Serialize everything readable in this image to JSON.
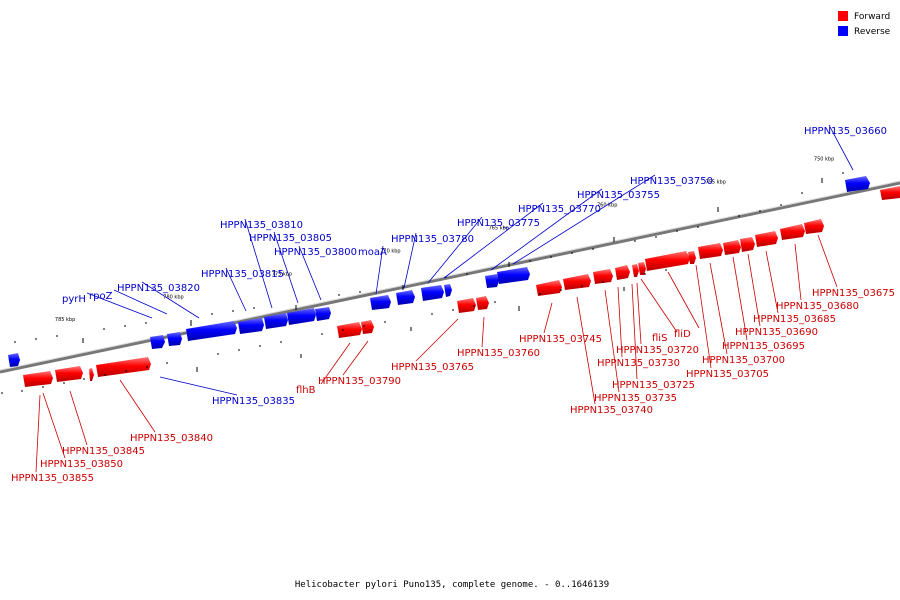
{
  "legend": {
    "items": [
      {
        "label": "Forward",
        "color": "#ff0000"
      },
      {
        "label": "Reverse",
        "color": "#0000ff"
      }
    ]
  },
  "caption": "Helicobacter pylori Puno135, complete genome. - 0..1646139",
  "axis": {
    "kbp_start": 788,
    "kbp_end": 746.5,
    "tick_labels": [
      {
        "kbp": 785,
        "label": "785 kbp"
      },
      {
        "kbp": 780,
        "label": "780 kbp"
      },
      {
        "kbp": 775,
        "label": "775 kbp"
      },
      {
        "kbp": 770,
        "label": "770 kbp"
      },
      {
        "kbp": 765,
        "label": "765 kbp"
      },
      {
        "kbp": 760,
        "label": "760 kbp"
      },
      {
        "kbp": 755,
        "label": "755 kbp"
      },
      {
        "kbp": 750,
        "label": "750 kbp"
      }
    ]
  },
  "genes": {
    "forward": [
      {
        "label": "HPPN135_03855",
        "kbp": 787.0
      },
      {
        "label": "HPPN135_03850",
        "kbp": 786.5
      },
      {
        "label": "HPPN135_03845",
        "kbp": 785.8
      },
      {
        "label": "HPPN135_03840",
        "kbp": 785.0
      },
      {
        "label": "flhB",
        "kbp": 774.8
      },
      {
        "label": "HPPN135_03790",
        "kbp": 773.8
      },
      {
        "label": "HPPN135_03765",
        "kbp": 768.0
      },
      {
        "label": "HPPN135_03760",
        "kbp": 767.2
      },
      {
        "label": "HPPN135_03745",
        "kbp": 762.6
      },
      {
        "label": "HPPN135_03740",
        "kbp": 761.8
      },
      {
        "label": "HPPN135_03735",
        "kbp": 760.8
      },
      {
        "label": "HPPN135_03730",
        "kbp": 760.1
      },
      {
        "label": "HPPN135_03725",
        "kbp": 759.7
      },
      {
        "label": "HPPN135_03720",
        "kbp": 759.3
      },
      {
        "label": "fliS",
        "kbp": 759.0
      },
      {
        "label": "fliD",
        "kbp": 758.0
      },
      {
        "label": "HPPN135_03705",
        "kbp": 756.8
      },
      {
        "label": "HPPN135_03700",
        "kbp": 756.2
      },
      {
        "label": "HPPN135_03695",
        "kbp": 755.6
      },
      {
        "label": "HPPN135_03690",
        "kbp": 754.8
      },
      {
        "label": "HPPN135_03685",
        "kbp": 753.8
      },
      {
        "label": "HPPN135_03680",
        "kbp": 753.0
      },
      {
        "label": "HPPN135_03675",
        "kbp": 752.0
      }
    ],
    "reverse": [
      {
        "label": "HPPN135_03835",
        "kbp": 783.5
      },
      {
        "label": "pyrH",
        "kbp": 782.2
      },
      {
        "label": "rpoZ",
        "kbp": 781.8
      },
      {
        "label": "HPPN135_03820",
        "kbp": 780.5
      },
      {
        "label": "HPPN135_03815",
        "kbp": 777.8
      },
      {
        "label": "HPPN135_03810",
        "kbp": 776.5
      },
      {
        "label": "HPPN135_03805",
        "kbp": 775.8
      },
      {
        "label": "HPPN135_03800",
        "kbp": 774.8
      },
      {
        "label": "moaA",
        "kbp": 771.8
      },
      {
        "label": "HPPN135_03780",
        "kbp": 770.2
      },
      {
        "label": "HPPN135_03775",
        "kbp": 769.2
      },
      {
        "label": "HPPN135_03770",
        "kbp": 768.2
      },
      {
        "label": "HPPN135_03755",
        "kbp": 766.5
      },
      {
        "label": "HPPN135_03750",
        "kbp": 765.6
      },
      {
        "label": "HPPN135_03660",
        "kbp": 750.0
      }
    ]
  }
}
